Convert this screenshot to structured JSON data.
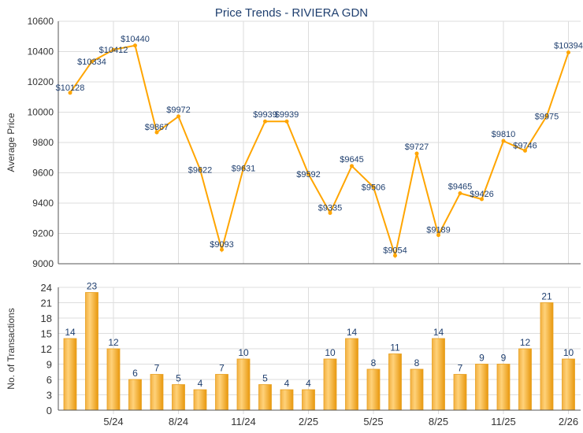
{
  "chart_data": [
    {
      "type": "line",
      "title": "Price Trends - RIVIERA GDN",
      "ylabel": "Average Price",
      "xlabel": "",
      "ylim": [
        9000,
        10600
      ],
      "yticks": [
        9000,
        9200,
        9400,
        9600,
        9800,
        10000,
        10200,
        10400,
        10600
      ],
      "values": [
        10128,
        10334,
        10412,
        10440,
        9867,
        9972,
        9622,
        9093,
        9631,
        9939,
        9939,
        9592,
        9335,
        9645,
        9506,
        9054,
        9727,
        9189,
        9465,
        9426,
        9810,
        9746,
        9975,
        10394
      ],
      "labels": [
        "$10128",
        "$10334",
        "$10412",
        "$10440",
        "$9867",
        "$9972",
        "$9622",
        "$9093",
        "$9631",
        "$9939",
        "$9939",
        "$9592",
        "$9335",
        "$9645",
        "$9506",
        "$9054",
        "$9727",
        "$9189",
        "$9465",
        "$9426",
        "$9810",
        "$9746",
        "$9975",
        "$10394"
      ],
      "grid": true,
      "color": "#FFA500"
    },
    {
      "type": "bar",
      "ylabel": "No. of Transactions",
      "ylim": [
        0,
        24
      ],
      "yticks": [
        0,
        3,
        6,
        9,
        12,
        15,
        18,
        21,
        24
      ],
      "values": [
        14,
        23,
        12,
        6,
        7,
        5,
        4,
        7,
        10,
        5,
        4,
        4,
        10,
        14,
        8,
        11,
        8,
        14,
        7,
        9,
        9,
        12,
        21,
        10
      ],
      "xticks": [
        {
          "index": 2,
          "label": "5/24"
        },
        {
          "index": 5,
          "label": "8/24"
        },
        {
          "index": 8,
          "label": "11/24"
        },
        {
          "index": 11,
          "label": "2/25"
        },
        {
          "index": 14,
          "label": "5/25"
        },
        {
          "index": 17,
          "label": "8/25"
        },
        {
          "index": 20,
          "label": "11/25"
        },
        {
          "index": 23,
          "label": "2/26"
        }
      ],
      "grid": true,
      "color": "#F0A830"
    }
  ],
  "colors": {
    "title": "#1F3F6F",
    "label": "#1F3F6F",
    "axis": "#333333",
    "grid": "#DDDDDD"
  }
}
